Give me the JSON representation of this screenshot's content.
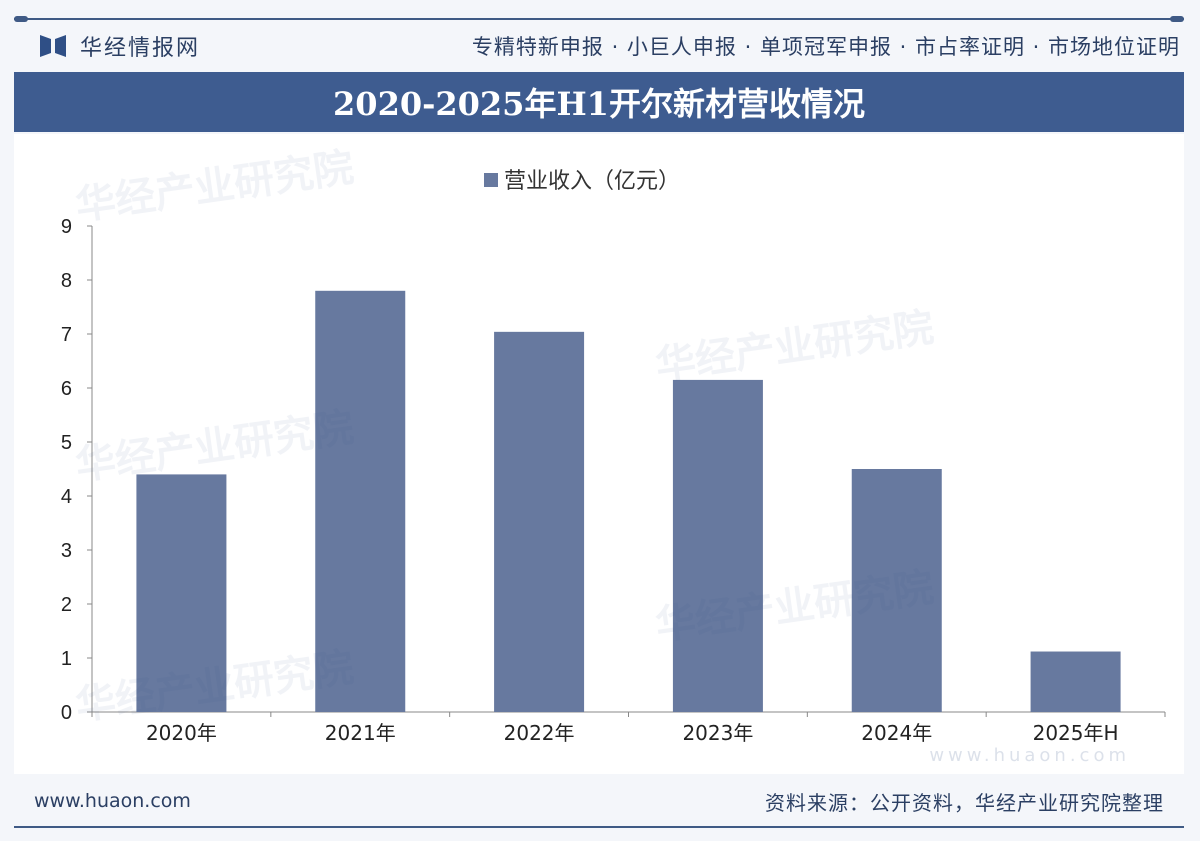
{
  "header": {
    "logo_text": "华经情报网",
    "services": "专精特新申报 · 小巨人申报 · 单项冠军申报 · 市占率证明 · 市场地位证明"
  },
  "title": "2020-2025年H1开尔新材营收情况",
  "watermark": {
    "text": "华经产业研究院",
    "url": "www.huaon.com"
  },
  "footer": {
    "site": "www.huaon.com",
    "source": "资料来源：公开资料，华经产业研究院整理"
  },
  "colors": {
    "bar": "#67799f",
    "titlebar": "#3e5c90"
  },
  "chart_data": {
    "type": "bar",
    "title": "2020-2025年H1开尔新材营收情况",
    "categories": [
      "2020年",
      "2021年",
      "2022年",
      "2023年",
      "2024年",
      "2025年H"
    ],
    "series": [
      {
        "name": "营业收入（亿元）",
        "values": [
          4.4,
          7.8,
          7.04,
          6.15,
          4.5,
          1.12
        ]
      }
    ],
    "xlabel": "",
    "ylabel": "",
    "ylim": [
      0,
      9
    ],
    "yticks": [
      "0",
      "1",
      "2",
      "3",
      "4",
      "5",
      "6",
      "7",
      "8",
      "9"
    ],
    "grid": false,
    "legend": "top-center"
  }
}
